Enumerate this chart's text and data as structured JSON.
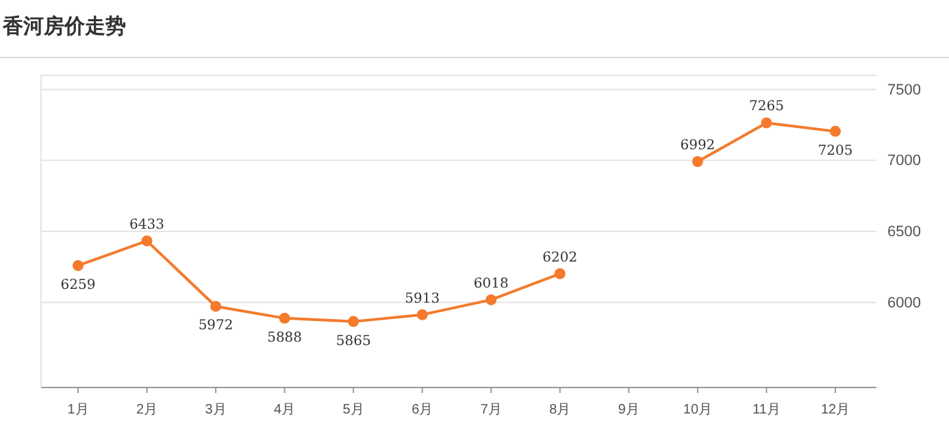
{
  "chart_data": {
    "type": "line",
    "title": "香河房价走势",
    "categories": [
      "1月",
      "2月",
      "3月",
      "4月",
      "5月",
      "6月",
      "7月",
      "8月",
      "9月",
      "10月",
      "11月",
      "12月"
    ],
    "series": [
      {
        "color": "#f47a2c",
        "values": [
          6259,
          6433,
          5972,
          5888,
          5865,
          5913,
          6018,
          6202,
          null,
          6992,
          7265,
          7205
        ]
      }
    ],
    "data_labels": true,
    "marker": "circle",
    "grid": "y",
    "ylim": [
      5400,
      7600
    ],
    "yticks": [
      6000,
      6500,
      7000,
      7500
    ]
  }
}
